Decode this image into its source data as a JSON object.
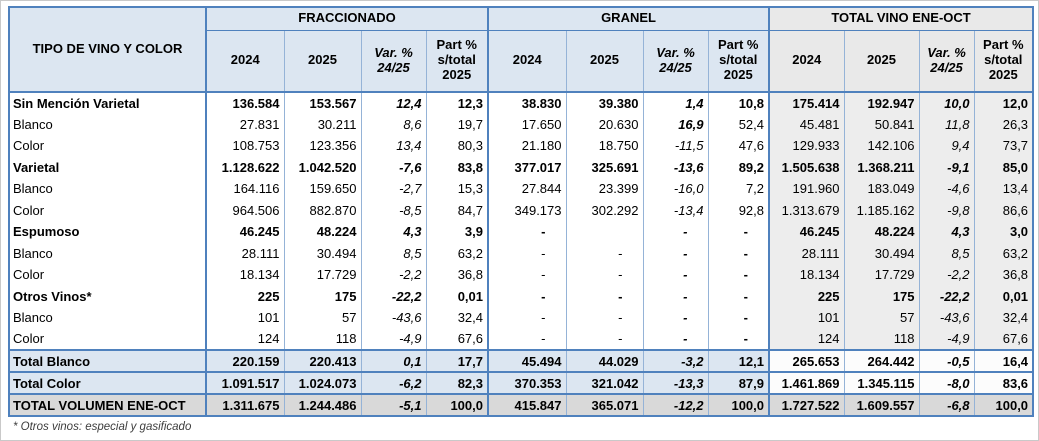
{
  "header": {
    "row_label_title": "TIPO DE VINO Y COLOR",
    "groups": [
      {
        "label": "FRACCIONADO",
        "bg": "blue"
      },
      {
        "label": "GRANEL",
        "bg": "blue"
      },
      {
        "label": "TOTAL VINO ENE-OCT",
        "bg": "gray"
      }
    ],
    "sub_columns": [
      {
        "lines": [
          "2024"
        ],
        "italic": false
      },
      {
        "lines": [
          "2025"
        ],
        "italic": false
      },
      {
        "lines": [
          "Var. %",
          "24/25"
        ],
        "italic": true
      },
      {
        "lines": [
          "Part %",
          "s/total",
          "2025"
        ],
        "italic": false
      }
    ]
  },
  "rows": [
    {
      "label": "Sin Mención Varietal",
      "bold": true,
      "cells": [
        "136.584",
        "153.567",
        "12,4",
        "12,3",
        "38.830",
        "39.380",
        "1,4",
        "10,8",
        "175.414",
        "192.947",
        "10,0",
        "12,0"
      ]
    },
    {
      "label": "Blanco",
      "bold": false,
      "bold_cells": [
        6
      ],
      "cells": [
        "27.831",
        "30.211",
        "8,6",
        "19,7",
        "17.650",
        "20.630",
        "16,9",
        "52,4",
        "45.481",
        "50.841",
        "11,8",
        "26,3"
      ]
    },
    {
      "label": "Color",
      "bold": false,
      "cells": [
        "108.753",
        "123.356",
        "13,4",
        "80,3",
        "21.180",
        "18.750",
        "-11,5",
        "47,6",
        "129.933",
        "142.106",
        "9,4",
        "73,7"
      ]
    },
    {
      "label": "Varietal",
      "bold": true,
      "cells": [
        "1.128.622",
        "1.042.520",
        "-7,6",
        "83,8",
        "377.017",
        "325.691",
        "-13,6",
        "89,2",
        "1.505.638",
        "1.368.211",
        "-9,1",
        "85,0"
      ]
    },
    {
      "label": "Blanco",
      "bold": false,
      "cells": [
        "164.116",
        "159.650",
        "-2,7",
        "15,3",
        "27.844",
        "23.399",
        "-16,0",
        "7,2",
        "191.960",
        "183.049",
        "-4,6",
        "13,4"
      ]
    },
    {
      "label": "Color",
      "bold": false,
      "cells": [
        "964.506",
        "882.870",
        "-8,5",
        "84,7",
        "349.173",
        "302.292",
        "-13,4",
        "92,8",
        "1.313.679",
        "1.185.162",
        "-9,8",
        "86,6"
      ]
    },
    {
      "label": "Espumoso",
      "bold": true,
      "cells": [
        "46.245",
        "48.224",
        "4,3",
        "3,9",
        "-",
        "",
        "-",
        "-",
        "46.245",
        "48.224",
        "4,3",
        "3,0"
      ]
    },
    {
      "label": "Blanco",
      "bold": false,
      "bold_cells": [
        6,
        7
      ],
      "cells": [
        "28.111",
        "30.494",
        "8,5",
        "63,2",
        "-",
        "-",
        "-",
        "-",
        "28.111",
        "30.494",
        "8,5",
        "63,2"
      ]
    },
    {
      "label": "Color",
      "bold": false,
      "bold_cells": [
        6,
        7
      ],
      "cells": [
        "18.134",
        "17.729",
        "-2,2",
        "36,8",
        "-",
        "-",
        "-",
        "-",
        "18.134",
        "17.729",
        "-2,2",
        "36,8"
      ]
    },
    {
      "label": "Otros Vinos*",
      "bold": true,
      "cells": [
        "225",
        "175",
        "-22,2",
        "0,01",
        "-",
        "-",
        "-",
        "-",
        "225",
        "175",
        "-22,2",
        "0,01"
      ]
    },
    {
      "label": "Blanco",
      "bold": false,
      "bold_cells": [
        6,
        7
      ],
      "cells": [
        "101",
        "57",
        "-43,6",
        "32,4",
        "-",
        "-",
        "-",
        "-",
        "101",
        "57",
        "-43,6",
        "32,4"
      ]
    },
    {
      "label": "Color",
      "bold": false,
      "bold_cells": [
        6,
        7
      ],
      "cells": [
        "124",
        "118",
        "-4,9",
        "67,6",
        "-",
        "-",
        "-",
        "-",
        "124",
        "118",
        "-4,9",
        "67,6"
      ]
    },
    {
      "label": "Total Blanco",
      "bold": true,
      "row_type": "total_blue",
      "cells": [
        "220.159",
        "220.413",
        "0,1",
        "17,7",
        "45.494",
        "44.029",
        "-3,2",
        "12,1",
        "265.653",
        "264.442",
        "-0,5",
        "16,4"
      ]
    },
    {
      "label": "Total Color",
      "bold": true,
      "row_type": "total_blue",
      "cells": [
        "1.091.517",
        "1.024.073",
        "-6,2",
        "82,3",
        "370.353",
        "321.042",
        "-13,3",
        "87,9",
        "1.461.869",
        "1.345.115",
        "-8,0",
        "83,6"
      ]
    },
    {
      "label": "TOTAL VOLUMEN ENE-OCT",
      "bold": true,
      "row_type": "grand_total",
      "cells": [
        "1.311.675",
        "1.244.486",
        "-5,1",
        "100,0",
        "415.847",
        "365.071",
        "-12,2",
        "100,0",
        "1.727.522",
        "1.609.557",
        "-6,8",
        "100,0"
      ]
    }
  ],
  "footnote": "* Otros vinos: especial y gasificado",
  "colors": {
    "header_blue": "#dce6f1",
    "header_gray": "#e9e9e9",
    "total_column_gray": "#ededed",
    "grand_total_gray": "#d9d9d9",
    "border_strong": "#4f81bd",
    "border_light": "#95b3d7"
  },
  "chart_data": {
    "type": "table",
    "title": "Volumen de vino por tipo y color, ENE-OCT (Fraccionado / Granel / Total)",
    "column_groups": [
      "FRACCIONADO",
      "GRANEL",
      "TOTAL VINO ENE-OCT"
    ],
    "columns": [
      "TIPO DE VINO Y COLOR",
      "FRACCIONADO 2024",
      "FRACCIONADO 2025",
      "FRACCIONADO Var. % 24/25",
      "FRACCIONADO Part % s/total 2025",
      "GRANEL 2024",
      "GRANEL 2025",
      "GRANEL Var. % 24/25",
      "GRANEL Part % s/total 2025",
      "TOTAL 2024",
      "TOTAL 2025",
      "TOTAL Var. % 24/25",
      "TOTAL Part % s/total 2025"
    ],
    "rows": [
      [
        "Sin Mención Varietal",
        "136.584",
        "153.567",
        "12,4",
        "12,3",
        "38.830",
        "39.380",
        "1,4",
        "10,8",
        "175.414",
        "192.947",
        "10,0",
        "12,0"
      ],
      [
        "Blanco",
        "27.831",
        "30.211",
        "8,6",
        "19,7",
        "17.650",
        "20.630",
        "16,9",
        "52,4",
        "45.481",
        "50.841",
        "11,8",
        "26,3"
      ],
      [
        "Color",
        "108.753",
        "123.356",
        "13,4",
        "80,3",
        "21.180",
        "18.750",
        "-11,5",
        "47,6",
        "129.933",
        "142.106",
        "9,4",
        "73,7"
      ],
      [
        "Varietal",
        "1.128.622",
        "1.042.520",
        "-7,6",
        "83,8",
        "377.017",
        "325.691",
        "-13,6",
        "89,2",
        "1.505.638",
        "1.368.211",
        "-9,1",
        "85,0"
      ],
      [
        "Blanco",
        "164.116",
        "159.650",
        "-2,7",
        "15,3",
        "27.844",
        "23.399",
        "-16,0",
        "7,2",
        "191.960",
        "183.049",
        "-4,6",
        "13,4"
      ],
      [
        "Color",
        "964.506",
        "882.870",
        "-8,5",
        "84,7",
        "349.173",
        "302.292",
        "-13,4",
        "92,8",
        "1.313.679",
        "1.185.162",
        "-9,8",
        "86,6"
      ],
      [
        "Espumoso",
        "46.245",
        "48.224",
        "4,3",
        "3,9",
        "-",
        "",
        "-",
        "-",
        "46.245",
        "48.224",
        "4,3",
        "3,0"
      ],
      [
        "Blanco",
        "28.111",
        "30.494",
        "8,5",
        "63,2",
        "-",
        "-",
        "-",
        "-",
        "28.111",
        "30.494",
        "8,5",
        "63,2"
      ],
      [
        "Color",
        "18.134",
        "17.729",
        "-2,2",
        "36,8",
        "-",
        "-",
        "-",
        "-",
        "18.134",
        "17.729",
        "-2,2",
        "36,8"
      ],
      [
        "Otros Vinos*",
        "225",
        "175",
        "-22,2",
        "0,01",
        "-",
        "-",
        "-",
        "-",
        "225",
        "175",
        "-22,2",
        "0,01"
      ],
      [
        "Blanco",
        "101",
        "57",
        "-43,6",
        "32,4",
        "-",
        "-",
        "-",
        "-",
        "101",
        "57",
        "-43,6",
        "32,4"
      ],
      [
        "Color",
        "124",
        "118",
        "-4,9",
        "67,6",
        "-",
        "-",
        "-",
        "-",
        "124",
        "118",
        "-4,9",
        "67,6"
      ],
      [
        "Total Blanco",
        "220.159",
        "220.413",
        "0,1",
        "17,7",
        "45.494",
        "44.029",
        "-3,2",
        "12,1",
        "265.653",
        "264.442",
        "-0,5",
        "16,4"
      ],
      [
        "Total Color",
        "1.091.517",
        "1.024.073",
        "-6,2",
        "82,3",
        "370.353",
        "321.042",
        "-13,3",
        "87,9",
        "1.461.869",
        "1.345.115",
        "-8,0",
        "83,6"
      ],
      [
        "TOTAL VOLUMEN ENE-OCT",
        "1.311.675",
        "1.244.486",
        "-5,1",
        "100,0",
        "415.847",
        "365.071",
        "-12,2",
        "100,0",
        "1.727.522",
        "1.609.557",
        "-6,8",
        "100,0"
      ]
    ]
  }
}
